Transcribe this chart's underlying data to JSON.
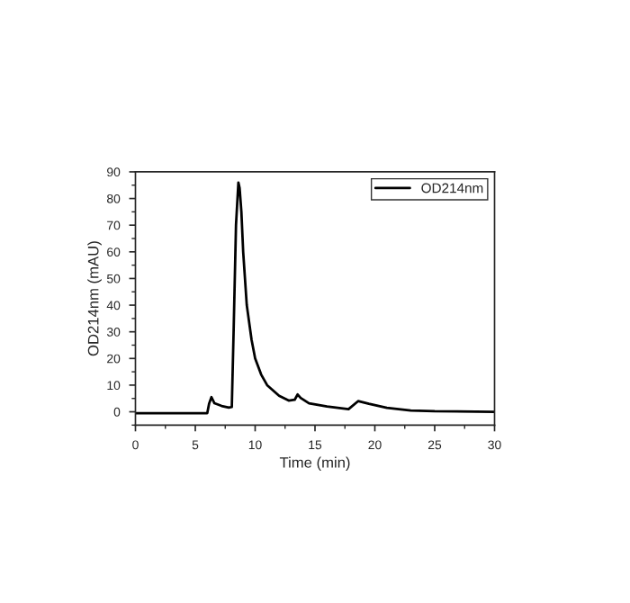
{
  "chart_data": {
    "type": "line",
    "xlabel": "Time (min)",
    "ylabel": "OD214nm (mAU)",
    "x": [
      0,
      3,
      6.0,
      6.15,
      6.35,
      6.6,
      7.2,
      7.8,
      8.05,
      8.2,
      8.4,
      8.6,
      8.7,
      8.85,
      9.0,
      9.3,
      9.7,
      10.0,
      10.5,
      11.0,
      12.0,
      12.8,
      13.3,
      13.55,
      13.8,
      14.5,
      16.0,
      17.8,
      18.6,
      19.5,
      21.0,
      23.0,
      25.0,
      30.0
    ],
    "series": [
      {
        "name": "OD214nm",
        "color": "#000000",
        "values": [
          -0.5,
          -0.5,
          -0.5,
          3,
          5.5,
          3.2,
          2.2,
          1.6,
          1.8,
          30,
          70,
          86,
          84,
          75,
          60,
          40,
          27,
          20,
          14,
          10,
          6,
          4.2,
          4.5,
          6.5,
          5.2,
          3.2,
          2.0,
          1.0,
          4.0,
          3.0,
          1.5,
          0.5,
          0.2,
          0
        ]
      }
    ],
    "xlim": [
      0,
      30
    ],
    "ylim": [
      -5,
      90
    ],
    "xticks": [
      0,
      5,
      10,
      15,
      20,
      25,
      30
    ],
    "yticks": [
      0,
      10,
      20,
      30,
      40,
      50,
      60,
      70,
      80,
      90
    ],
    "legend": "top right",
    "grid": false,
    "line_style": "solid",
    "marker": "none"
  }
}
